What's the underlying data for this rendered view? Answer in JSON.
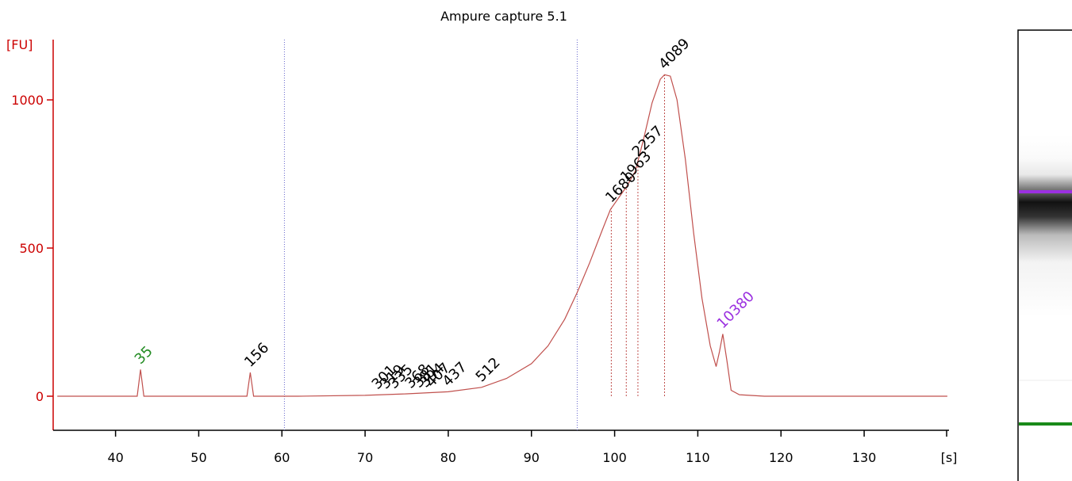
{
  "chart_data": {
    "type": "line",
    "title": "Ampure capture 5.1",
    "y_label": "[FU]",
    "x_label": "[s]",
    "x": [
      33,
      42.6,
      43,
      43.4,
      55.8,
      56.2,
      56.6,
      62,
      70,
      75,
      80,
      84,
      87,
      90,
      92,
      94,
      95.5,
      97,
      98.5,
      99.5,
      100.5,
      101.5,
      102.5,
      103.5,
      104.5,
      105.5,
      106,
      106.7,
      107.5,
      108.5,
      109.5,
      110.5,
      111.5,
      112.2,
      112.6,
      113,
      113.5,
      114,
      115,
      118,
      140
    ],
    "y": [
      0,
      0,
      90,
      0,
      0,
      80,
      0,
      0,
      3,
      8,
      15,
      30,
      60,
      110,
      170,
      260,
      350,
      450,
      560,
      630,
      670,
      710,
      760,
      870,
      990,
      1070,
      1085,
      1080,
      1000,
      800,
      550,
      330,
      170,
      100,
      150,
      210,
      120,
      20,
      5,
      0,
      0
    ],
    "color": "#c0504d",
    "xlim": [
      32.5,
      140.2
    ],
    "ylim": [
      -115,
      1190
    ],
    "xticks": [
      40,
      50,
      60,
      70,
      80,
      90,
      100,
      110,
      120,
      130
    ],
    "yticks": [
      0,
      500,
      1000
    ],
    "region_markers": [
      60.3,
      95.5
    ],
    "peaks": [
      {
        "size": 35,
        "x": 43,
        "y": 90,
        "color": "#228b22"
      },
      {
        "size": 156,
        "x": 56.2,
        "y": 80,
        "color": "#000000"
      },
      {
        "size": 301,
        "x": 71.5,
        "y": 5,
        "color": "#000000"
      },
      {
        "size": 319,
        "x": 72.5,
        "y": 6,
        "color": "#000000"
      },
      {
        "size": 335,
        "x": 73.5,
        "y": 7,
        "color": "#000000"
      },
      {
        "size": 368,
        "x": 75.5,
        "y": 8,
        "color": "#000000"
      },
      {
        "size": 381,
        "x": 76.5,
        "y": 10,
        "color": "#000000"
      },
      {
        "size": 394,
        "x": 77.3,
        "y": 11,
        "color": "#000000"
      },
      {
        "size": 407,
        "x": 78,
        "y": 12,
        "color": "#000000"
      },
      {
        "size": 437,
        "x": 80,
        "y": 15,
        "color": "#000000"
      },
      {
        "size": 512,
        "x": 84,
        "y": 30,
        "color": "#000000"
      },
      {
        "size": 1680,
        "x": 99.6,
        "y": 635,
        "color": "#000000"
      },
      {
        "size": 1963,
        "x": 101.4,
        "y": 705,
        "color": "#000000"
      },
      {
        "size": 2257,
        "x": 102.8,
        "y": 790,
        "color": "#000000"
      },
      {
        "size": 4089,
        "x": 106,
        "y": 1085,
        "color": "#000000"
      },
      {
        "size": 10380,
        "x": 113,
        "y": 210,
        "color": "#9b30e0"
      }
    ]
  }
}
